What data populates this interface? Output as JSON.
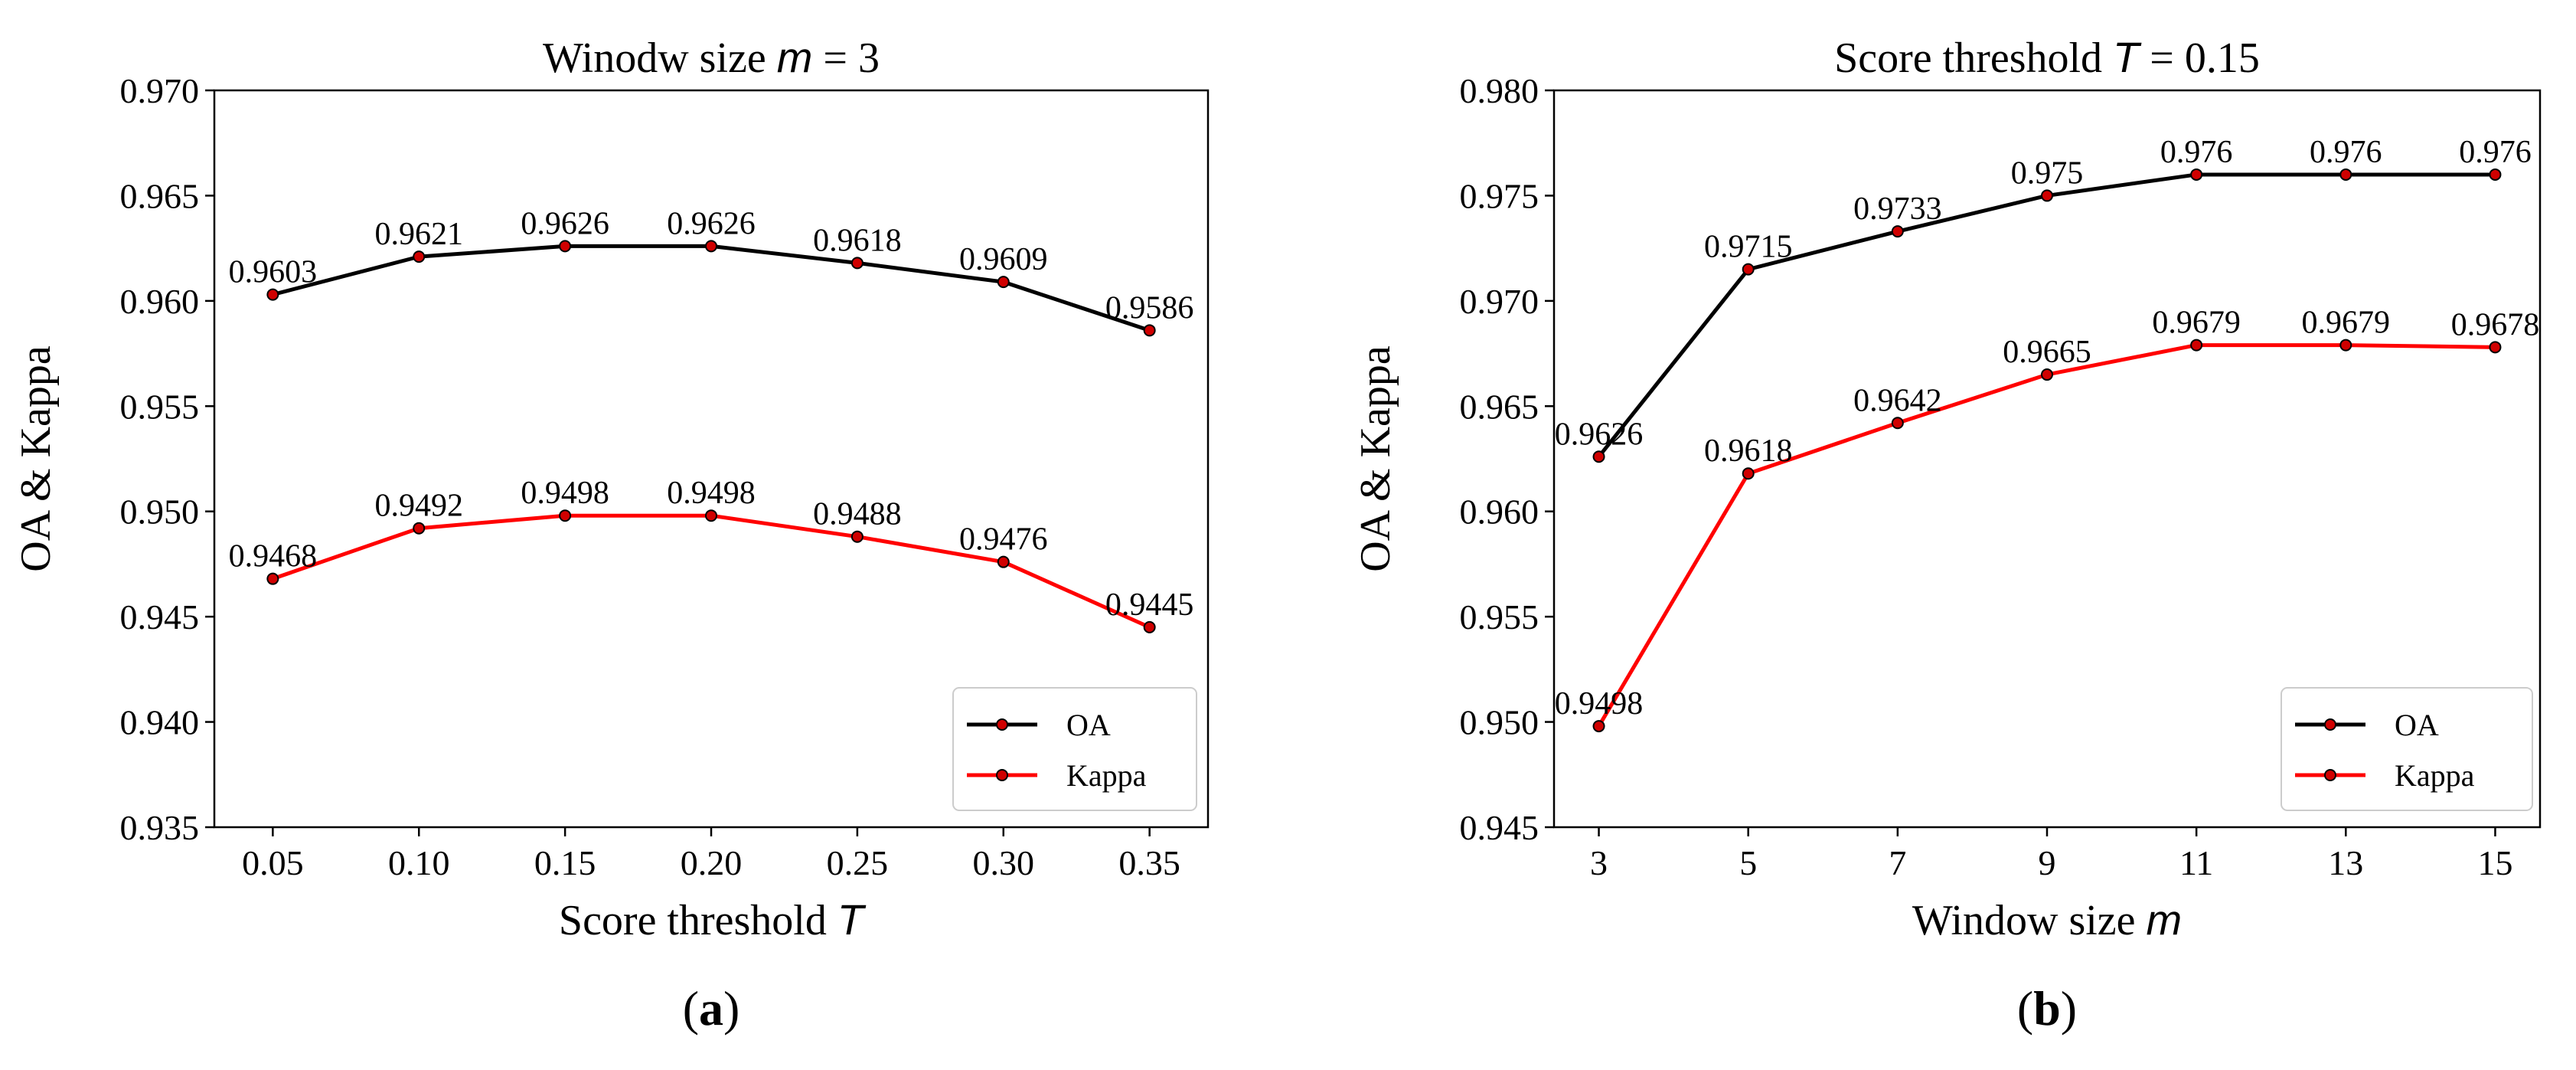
{
  "chart_data": [
    {
      "type": "line",
      "panel": "a",
      "title": "Winodw size",
      "title_var": "m",
      "title_value": "= 3",
      "xlabel": "Score threshold",
      "xlabel_var": "T",
      "ylabel": "OA & Kappa",
      "x": [
        0.05,
        0.1,
        0.15,
        0.2,
        0.25,
        0.3,
        0.35
      ],
      "x_tick_labels": [
        "0.05",
        "0.10",
        "0.15",
        "0.20",
        "0.25",
        "0.30",
        "0.35"
      ],
      "xlim": [
        0.03,
        0.37
      ],
      "ylim": [
        0.935,
        0.97
      ],
      "y_ticks": [
        0.935,
        0.94,
        0.945,
        0.95,
        0.955,
        0.96,
        0.965,
        0.97
      ],
      "y_tick_labels": [
        "0.935",
        "0.940",
        "0.945",
        "0.950",
        "0.955",
        "0.960",
        "0.965",
        "0.970"
      ],
      "series": [
        {
          "name": "OA",
          "color": "#000000",
          "values": [
            0.9603,
            0.9621,
            0.9626,
            0.9626,
            0.9618,
            0.9609,
            0.9586
          ],
          "value_labels": [
            "0.9603",
            "0.9621",
            "0.9626",
            "0.9626",
            "0.9618",
            "0.9609",
            "0.9586"
          ]
        },
        {
          "name": "Kappa",
          "color": "#ff0000",
          "values": [
            0.9468,
            0.9492,
            0.9498,
            0.9498,
            0.9488,
            0.9476,
            0.9445
          ],
          "value_labels": [
            "0.9468",
            "0.9492",
            "0.9498",
            "0.9498",
            "0.9488",
            "0.9476",
            "0.9445"
          ]
        }
      ],
      "legend": "lower-right",
      "grid": false,
      "panel_label": "a"
    },
    {
      "type": "line",
      "panel": "b",
      "title": "Score threshold",
      "title_var": "T",
      "title_value": "= 0.15",
      "xlabel": "Window size",
      "xlabel_var": "m",
      "ylabel": "OA & Kappa",
      "x": [
        3,
        5,
        7,
        9,
        11,
        13,
        15
      ],
      "x_tick_labels": [
        "3",
        "5",
        "7",
        "9",
        "11",
        "13",
        "15"
      ],
      "xlim": [
        2.4,
        15.6
      ],
      "ylim": [
        0.945,
        0.98
      ],
      "y_ticks": [
        0.945,
        0.95,
        0.955,
        0.96,
        0.965,
        0.97,
        0.975,
        0.98
      ],
      "y_tick_labels": [
        "0.945",
        "0.950",
        "0.955",
        "0.960",
        "0.965",
        "0.970",
        "0.975",
        "0.980"
      ],
      "series": [
        {
          "name": "OA",
          "color": "#000000",
          "values": [
            0.9626,
            0.9715,
            0.9733,
            0.975,
            0.976,
            0.976,
            0.976
          ],
          "value_labels": [
            "0.9626",
            "0.9715",
            "0.9733",
            "0.975",
            "0.976",
            "0.976",
            "0.976"
          ]
        },
        {
          "name": "Kappa",
          "color": "#ff0000",
          "values": [
            0.9498,
            0.9618,
            0.9642,
            0.9665,
            0.9679,
            0.9679,
            0.9678
          ],
          "value_labels": [
            "0.9498",
            "0.9618",
            "0.9642",
            "0.9665",
            "0.9679",
            "0.9679",
            "0.9678"
          ]
        }
      ],
      "legend": "lower-right",
      "grid": false,
      "panel_label": "b"
    }
  ]
}
